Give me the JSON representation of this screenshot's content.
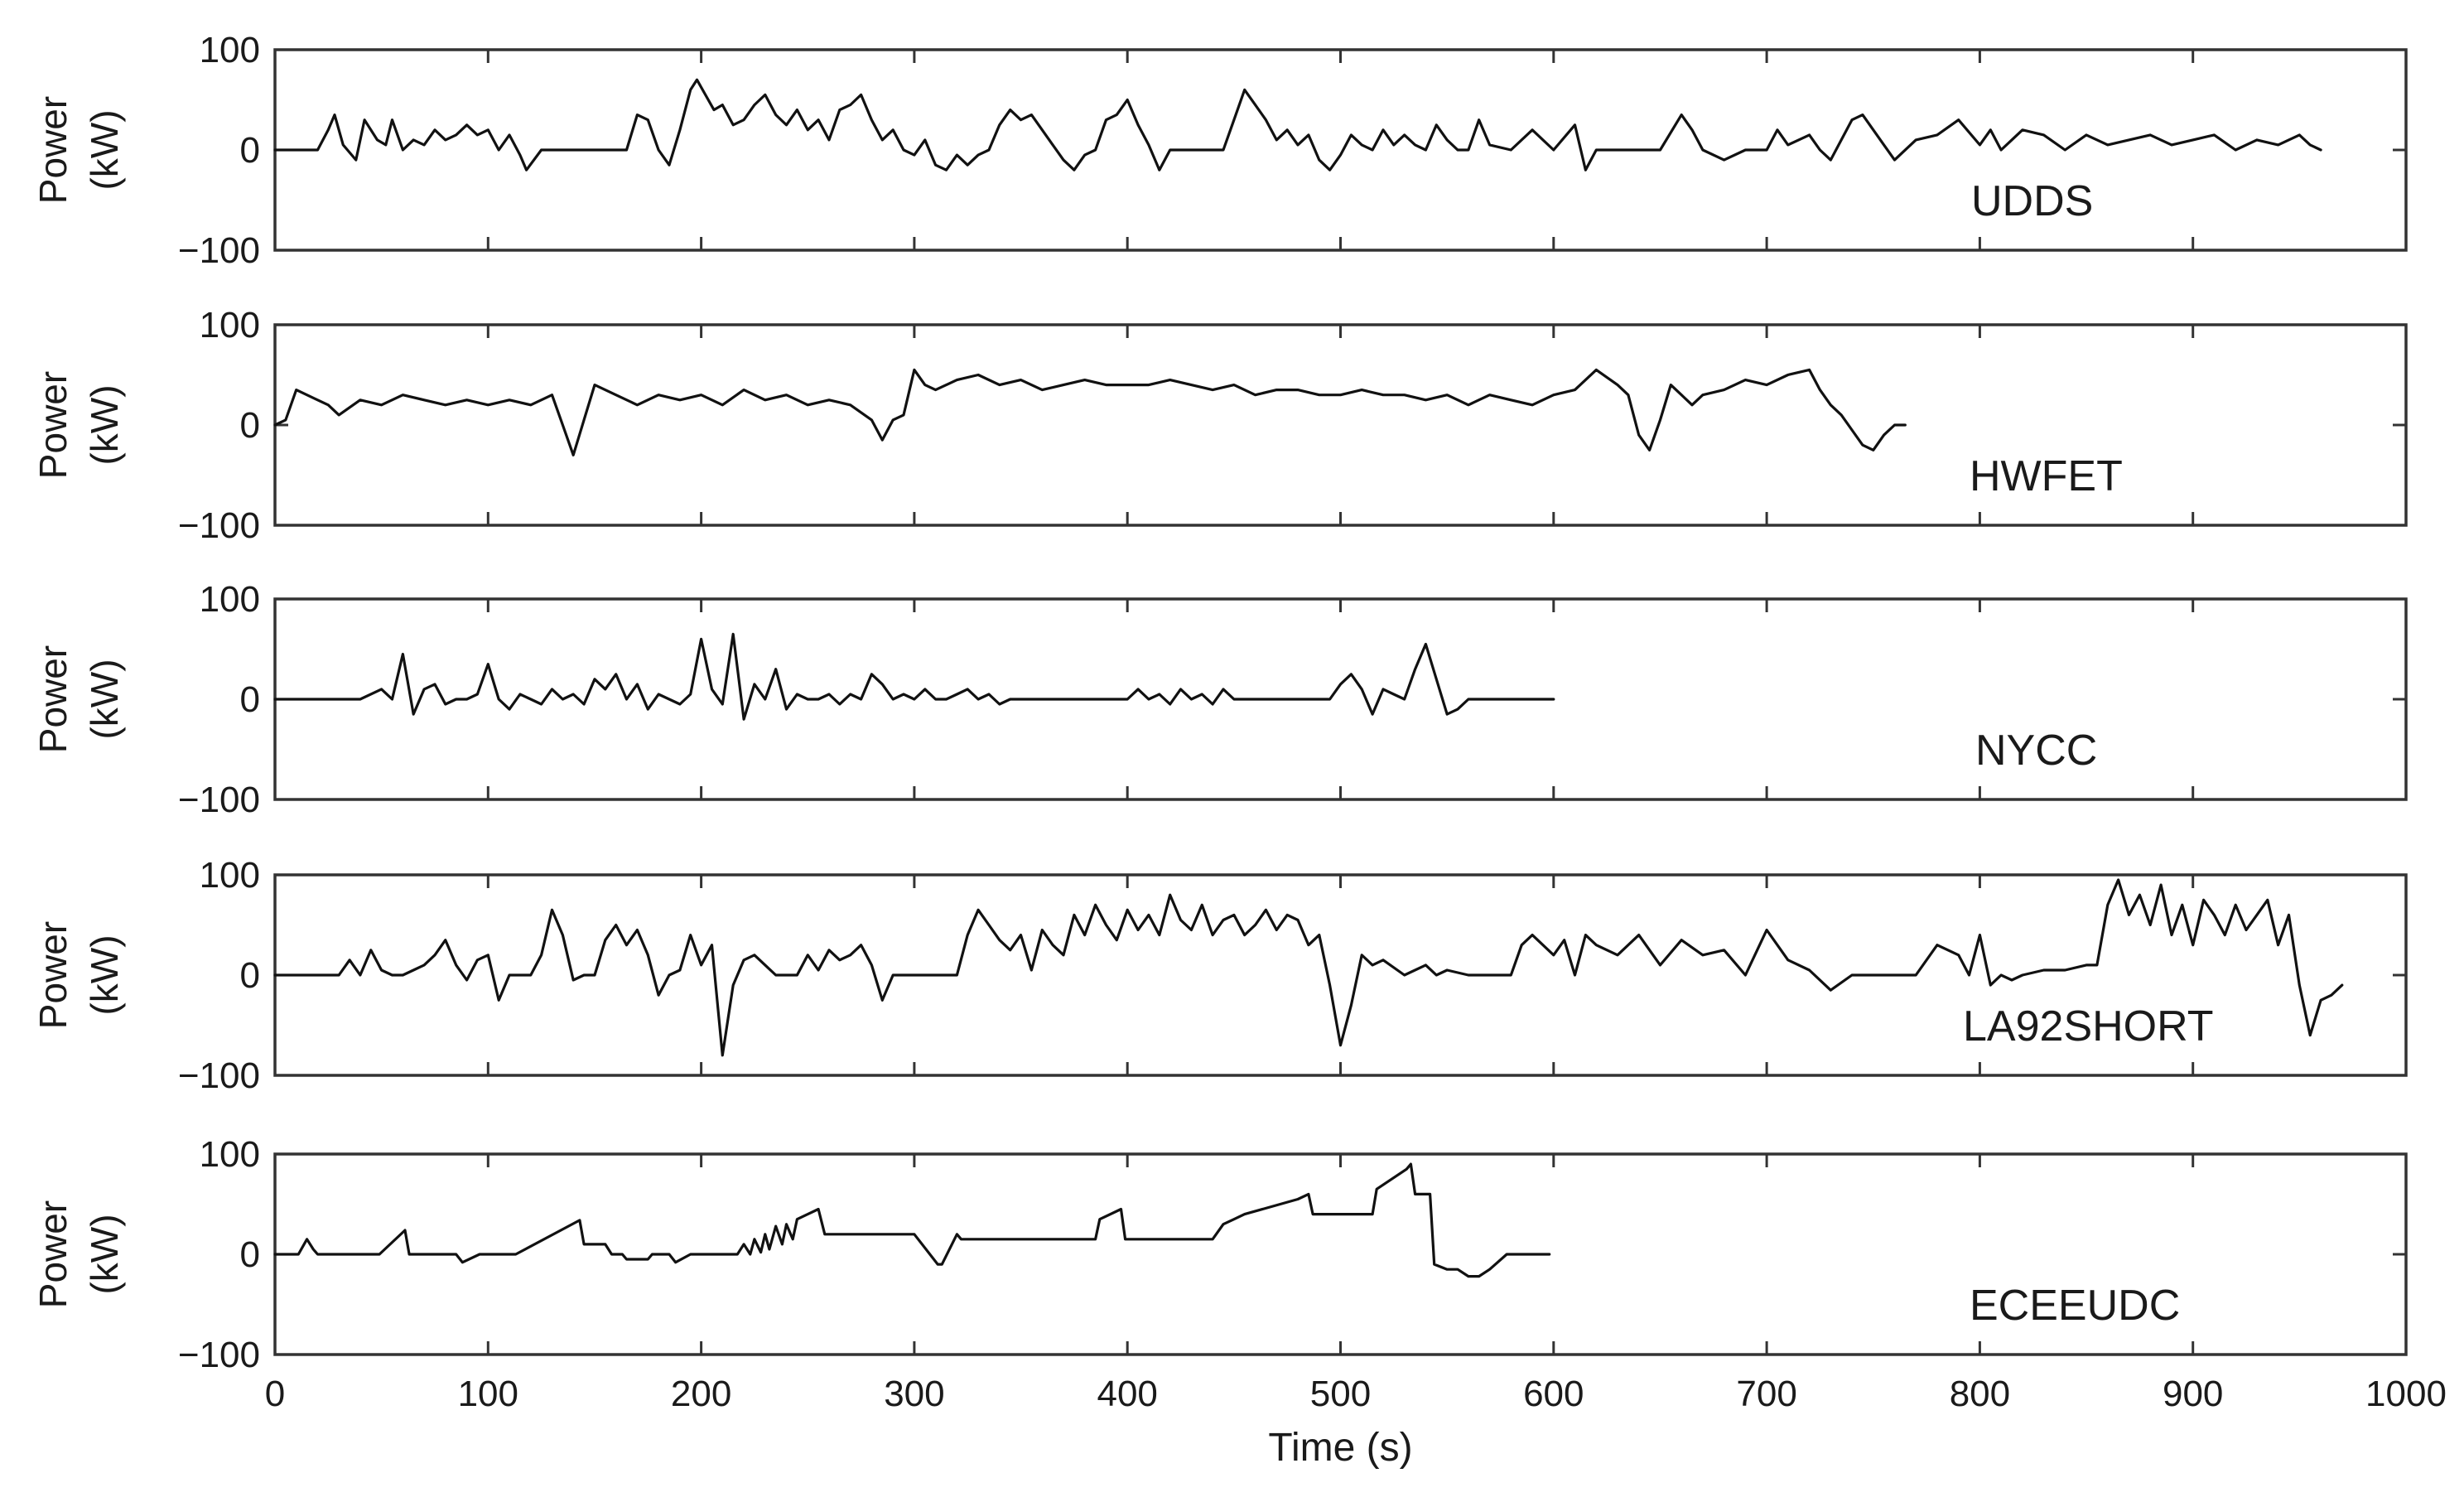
{
  "chart_data": {
    "type": "line",
    "layout": "stacked-subplots",
    "shared_xaxis": {
      "xlabel": "Time (s)",
      "xlim": [
        0,
        1000
      ],
      "xticks": [
        0,
        100,
        200,
        300,
        400,
        500,
        600,
        700,
        800,
        900,
        1000
      ],
      "xtick_labels": [
        "0",
        "100",
        "200",
        "300",
        "400",
        "500",
        "600",
        "700",
        "800",
        "900",
        "1000"
      ]
    },
    "grid": false,
    "line_color": "#111111",
    "panels": [
      {
        "name": "UDDS",
        "ylabel_line1": "Power",
        "ylabel_line2": "(kW)",
        "ylim": [
          -100,
          100
        ],
        "yticks": [
          -100,
          0,
          100
        ],
        "ytick_labels": [
          "−100",
          "0",
          "100"
        ],
        "x": [
          0,
          20,
          25,
          28,
          32,
          38,
          42,
          48,
          52,
          55,
          60,
          65,
          70,
          75,
          80,
          85,
          90,
          95,
          100,
          105,
          110,
          115,
          118,
          125,
          130,
          165,
          170,
          175,
          180,
          185,
          190,
          195,
          198,
          202,
          206,
          210,
          215,
          220,
          225,
          230,
          235,
          240,
          245,
          250,
          255,
          260,
          265,
          270,
          275,
          280,
          285,
          290,
          295,
          300,
          305,
          310,
          315,
          320,
          325,
          330,
          335,
          340,
          345,
          350,
          355,
          360,
          365,
          370,
          375,
          380,
          385,
          390,
          395,
          400,
          405,
          410,
          415,
          420,
          445,
          450,
          455,
          460,
          465,
          470,
          475,
          480,
          485,
          490,
          495,
          500,
          505,
          510,
          515,
          520,
          525,
          530,
          535,
          540,
          545,
          550,
          555,
          560,
          565,
          570,
          580,
          590,
          600,
          610,
          615,
          620,
          625,
          640,
          650,
          660,
          665,
          670,
          680,
          690,
          700,
          705,
          710,
          715,
          720,
          725,
          730,
          740,
          745,
          750,
          755,
          760,
          770,
          780,
          790,
          800,
          805,
          810,
          815,
          820,
          830,
          840,
          850,
          860,
          870,
          880,
          890,
          900,
          910,
          920,
          930,
          940,
          950,
          955,
          960
        ],
        "y": [
          0,
          0,
          20,
          35,
          5,
          -10,
          30,
          10,
          5,
          30,
          0,
          10,
          5,
          20,
          10,
          15,
          25,
          15,
          20,
          0,
          15,
          -5,
          -20,
          0,
          0,
          0,
          35,
          30,
          0,
          -15,
          20,
          60,
          70,
          55,
          40,
          45,
          25,
          30,
          45,
          55,
          35,
          25,
          40,
          20,
          30,
          10,
          40,
          45,
          55,
          30,
          10,
          20,
          0,
          -5,
          10,
          -15,
          -20,
          -5,
          -15,
          -5,
          0,
          25,
          40,
          30,
          35,
          20,
          5,
          -10,
          -20,
          -5,
          0,
          30,
          35,
          50,
          25,
          5,
          -20,
          0,
          0,
          30,
          60,
          45,
          30,
          10,
          20,
          5,
          15,
          -10,
          -20,
          -5,
          15,
          5,
          0,
          20,
          5,
          15,
          5,
          0,
          25,
          10,
          0,
          0,
          30,
          5,
          0,
          20,
          0,
          25,
          -20,
          0,
          0,
          0,
          0,
          35,
          20,
          0,
          -10,
          0,
          0,
          20,
          5,
          10,
          15,
          0,
          -10,
          30,
          35,
          20,
          5,
          -10,
          10,
          15,
          30,
          5,
          20,
          0,
          10,
          20,
          15,
          0,
          15,
          5,
          10,
          15,
          5,
          10,
          15,
          0,
          10,
          5,
          15,
          5,
          0
        ]
      },
      {
        "name": "HWFET",
        "ylabel_line1": "Power",
        "ylabel_line2": "(kW)",
        "ylim": [
          -100,
          100
        ],
        "yticks": [
          -100,
          0,
          100
        ],
        "ytick_labels": [
          "−100",
          "0",
          "100"
        ],
        "x": [
          0,
          5,
          10,
          15,
          20,
          25,
          30,
          40,
          50,
          60,
          70,
          80,
          90,
          100,
          110,
          120,
          130,
          135,
          140,
          145,
          150,
          160,
          170,
          180,
          190,
          200,
          210,
          220,
          230,
          240,
          250,
          260,
          270,
          280,
          285,
          290,
          295,
          300,
          305,
          310,
          320,
          330,
          340,
          350,
          360,
          370,
          380,
          390,
          400,
          410,
          420,
          430,
          440,
          450,
          460,
          470,
          480,
          490,
          500,
          510,
          520,
          530,
          540,
          550,
          560,
          570,
          580,
          590,
          600,
          610,
          620,
          630,
          635,
          640,
          645,
          650,
          655,
          660,
          665,
          670,
          680,
          690,
          700,
          710,
          720,
          725,
          730,
          735,
          740,
          745,
          750,
          755,
          760,
          765
        ],
        "y": [
          0,
          5,
          35,
          30,
          25,
          20,
          10,
          25,
          20,
          30,
          25,
          20,
          25,
          20,
          25,
          20,
          30,
          0,
          -30,
          5,
          40,
          30,
          20,
          30,
          25,
          30,
          20,
          35,
          25,
          30,
          20,
          25,
          20,
          5,
          -15,
          5,
          10,
          55,
          40,
          35,
          45,
          50,
          40,
          45,
          35,
          40,
          45,
          40,
          40,
          40,
          45,
          40,
          35,
          40,
          30,
          35,
          35,
          30,
          30,
          35,
          30,
          30,
          25,
          30,
          20,
          30,
          25,
          20,
          30,
          35,
          55,
          40,
          30,
          -10,
          -25,
          5,
          40,
          30,
          20,
          30,
          35,
          45,
          40,
          50,
          55,
          35,
          20,
          10,
          -5,
          -20,
          -25,
          -10,
          0,
          0
        ]
      },
      {
        "name": "NYCC",
        "ylabel_line1": "Power",
        "ylabel_line2": "(kW)",
        "ylim": [
          -100,
          100
        ],
        "yticks": [
          -100,
          0,
          100
        ],
        "ytick_labels": [
          "−100",
          "0",
          "100"
        ],
        "x": [
          0,
          40,
          50,
          55,
          60,
          65,
          70,
          75,
          80,
          85,
          90,
          95,
          100,
          105,
          110,
          115,
          120,
          125,
          130,
          135,
          140,
          145,
          150,
          155,
          160,
          165,
          170,
          175,
          180,
          185,
          190,
          195,
          200,
          205,
          210,
          215,
          220,
          225,
          230,
          235,
          240,
          245,
          250,
          255,
          260,
          265,
          270,
          275,
          280,
          285,
          290,
          295,
          300,
          305,
          310,
          315,
          320,
          325,
          330,
          335,
          340,
          345,
          400,
          405,
          410,
          415,
          420,
          425,
          430,
          435,
          440,
          445,
          450,
          495,
          500,
          505,
          510,
          515,
          520,
          525,
          530,
          535,
          540,
          545,
          550,
          555,
          560,
          565,
          570,
          600
        ],
        "y": [
          0,
          0,
          10,
          0,
          45,
          -15,
          10,
          15,
          -5,
          0,
          0,
          5,
          35,
          0,
          -10,
          5,
          0,
          -5,
          10,
          0,
          5,
          -5,
          20,
          10,
          25,
          0,
          15,
          -10,
          5,
          0,
          -5,
          5,
          60,
          10,
          -5,
          65,
          -20,
          15,
          0,
          30,
          -10,
          5,
          0,
          0,
          5,
          -5,
          5,
          0,
          25,
          15,
          0,
          5,
          0,
          10,
          0,
          0,
          5,
          10,
          0,
          5,
          -5,
          0,
          0,
          10,
          0,
          5,
          -5,
          10,
          0,
          5,
          -5,
          10,
          0,
          0,
          15,
          25,
          10,
          -15,
          10,
          5,
          0,
          30,
          55,
          20,
          -15,
          -10,
          0,
          0,
          0,
          0
        ]
      },
      {
        "name": "LA92SHORT",
        "ylabel_line1": "Power",
        "ylabel_line2": "(kW)",
        "ylim": [
          -100,
          100
        ],
        "yticks": [
          -100,
          0,
          100
        ],
        "ytick_labels": [
          "−100",
          "0",
          "100"
        ],
        "x": [
          0,
          30,
          35,
          40,
          45,
          50,
          55,
          60,
          65,
          70,
          75,
          80,
          85,
          90,
          95,
          100,
          105,
          110,
          120,
          125,
          130,
          135,
          140,
          145,
          150,
          155,
          160,
          165,
          170,
          175,
          180,
          185,
          190,
          195,
          200,
          205,
          210,
          215,
          220,
          225,
          230,
          235,
          240,
          245,
          250,
          255,
          260,
          265,
          270,
          275,
          280,
          285,
          290,
          300,
          320,
          325,
          330,
          335,
          340,
          345,
          350,
          355,
          360,
          365,
          370,
          375,
          380,
          385,
          390,
          395,
          400,
          405,
          410,
          415,
          420,
          425,
          430,
          435,
          440,
          445,
          450,
          455,
          460,
          465,
          470,
          475,
          480,
          485,
          490,
          495,
          500,
          505,
          510,
          515,
          520,
          530,
          540,
          545,
          550,
          560,
          580,
          585,
          590,
          600,
          605,
          610,
          615,
          620,
          630,
          640,
          650,
          660,
          670,
          680,
          690,
          700,
          710,
          720,
          730,
          740,
          750,
          760,
          770,
          780,
          790,
          795,
          800,
          805,
          810,
          815,
          820,
          830,
          840,
          850,
          855,
          860,
          865,
          870,
          875,
          880,
          885,
          890,
          895,
          900,
          905,
          910,
          915,
          920,
          925,
          930,
          935,
          940,
          945,
          950,
          955,
          960,
          965,
          970
        ],
        "y": [
          0,
          0,
          15,
          0,
          25,
          5,
          0,
          0,
          5,
          10,
          20,
          35,
          10,
          -5,
          15,
          20,
          -25,
          0,
          0,
          20,
          65,
          40,
          -5,
          0,
          0,
          35,
          50,
          30,
          45,
          20,
          -20,
          0,
          5,
          40,
          10,
          30,
          -80,
          -10,
          15,
          20,
          10,
          0,
          0,
          0,
          20,
          5,
          25,
          15,
          20,
          30,
          10,
          -25,
          0,
          0,
          0,
          40,
          65,
          50,
          35,
          25,
          40,
          5,
          45,
          30,
          20,
          60,
          40,
          70,
          50,
          35,
          65,
          45,
          60,
          40,
          80,
          55,
          45,
          70,
          40,
          55,
          60,
          40,
          50,
          65,
          45,
          60,
          55,
          30,
          40,
          -10,
          -70,
          -30,
          20,
          10,
          15,
          0,
          10,
          0,
          5,
          0,
          0,
          30,
          40,
          20,
          35,
          0,
          40,
          30,
          20,
          40,
          10,
          35,
          20,
          25,
          0,
          45,
          15,
          5,
          -15,
          0,
          0,
          0,
          0,
          30,
          20,
          0,
          40,
          -10,
          0,
          -5,
          0,
          5,
          5,
          10,
          10,
          70,
          95,
          60,
          80,
          50,
          90,
          40,
          70,
          30,
          75,
          60,
          40,
          70,
          45,
          60,
          75,
          30,
          60,
          -10,
          -60,
          -25,
          -20,
          -10
        ],
        "y_end_note": ""
      },
      {
        "name": "ECEEUDC",
        "ylabel_line1": "Power",
        "ylabel_line2": "(kW)",
        "ylim": [
          -100,
          100
        ],
        "yticks": [
          -100,
          0,
          100
        ],
        "ytick_labels": [
          "−100",
          "0",
          "100"
        ],
        "x": [
          0,
          11,
          15,
          18,
          20,
          28,
          49,
          61,
          63,
          85,
          88,
          96,
          113,
          143,
          145,
          155,
          158,
          163,
          165,
          175,
          177,
          185,
          188,
          195,
          210,
          217,
          220,
          223,
          225,
          228,
          230,
          232,
          235,
          238,
          240,
          243,
          245,
          250,
          255,
          258,
          261,
          300,
          311,
          313,
          320,
          322,
          325,
          385,
          387,
          397,
          399,
          440,
          445,
          450,
          455,
          480,
          485,
          487,
          515,
          517,
          531,
          533,
          535,
          542,
          544,
          550,
          555,
          560,
          565,
          570,
          578,
          598
        ],
        "y": [
          0,
          0,
          15,
          5,
          0,
          0,
          0,
          24,
          0,
          0,
          -8,
          0,
          0,
          34,
          10,
          10,
          0,
          0,
          -5,
          -5,
          0,
          0,
          -8,
          0,
          0,
          0,
          10,
          0,
          15,
          2,
          20,
          5,
          28,
          10,
          30,
          15,
          35,
          40,
          45,
          20,
          20,
          20,
          -10,
          -10,
          20,
          15,
          15,
          15,
          35,
          45,
          15,
          15,
          30,
          35,
          40,
          55,
          60,
          40,
          40,
          65,
          85,
          90,
          60,
          60,
          -10,
          -15,
          -15,
          -22,
          -22,
          -15,
          0,
          0
        ]
      }
    ]
  }
}
